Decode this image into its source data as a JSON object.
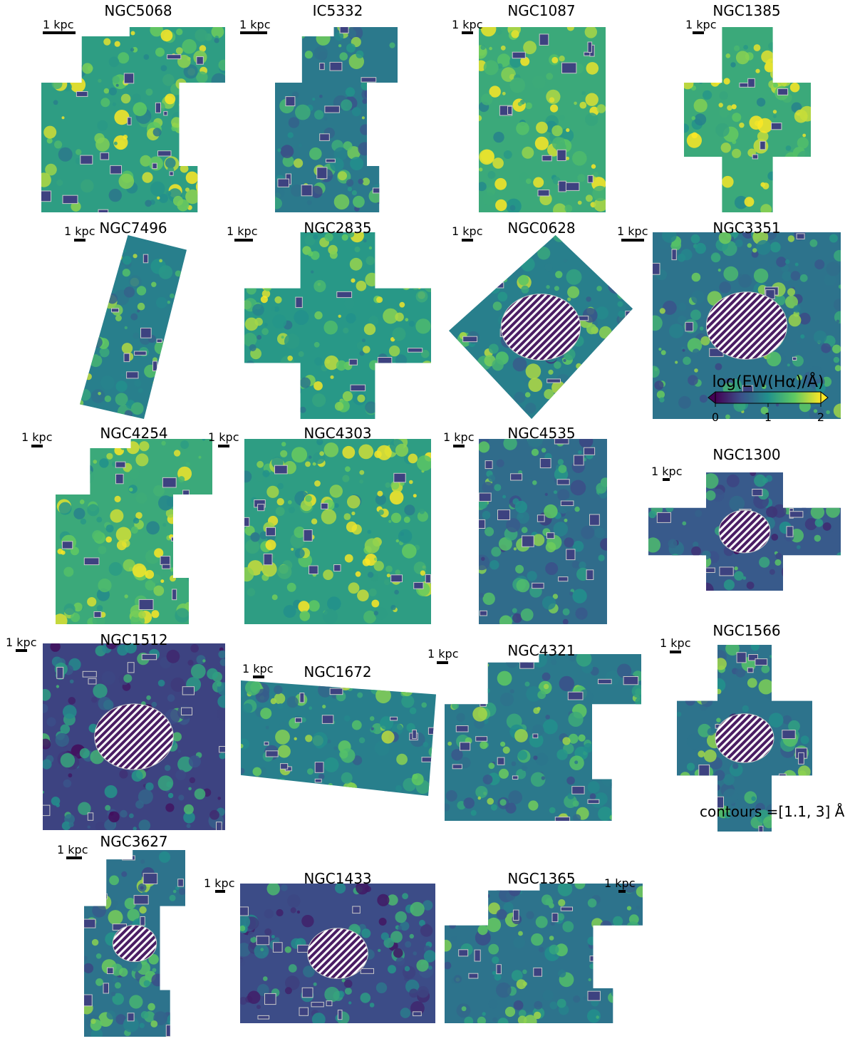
{
  "scale_bar_label": "1 kpc",
  "colormap": {
    "name": "viridis",
    "stops": [
      "#440154",
      "#3b528b",
      "#21918c",
      "#5ec962",
      "#fde725"
    ]
  },
  "contour_color": "#c8c8c8",
  "colorbar": {
    "label": "log(EW(Hα)/Å)",
    "range": [
      0,
      2
    ],
    "ticks": [
      "0",
      "1",
      "2"
    ],
    "extend": "both"
  },
  "contour_note": "contours =[1.1, 3] Å",
  "panels": [
    {
      "name": "NGC5068",
      "level": 1.35,
      "hatched": false
    },
    {
      "name": "IC5332",
      "level": 1.05,
      "hatched": false
    },
    {
      "name": "NGC1087",
      "level": 1.45,
      "hatched": false
    },
    {
      "name": "NGC1385",
      "level": 1.45,
      "hatched": false
    },
    {
      "name": "NGC7496",
      "level": 1.1,
      "hatched": false
    },
    {
      "name": "NGC2835",
      "level": 1.3,
      "hatched": false
    },
    {
      "name": "NGC0628",
      "level": 1.1,
      "hatched": true
    },
    {
      "name": "NGC3351",
      "level": 1.0,
      "hatched": true
    },
    {
      "name": "NGC4254",
      "level": 1.45,
      "hatched": false
    },
    {
      "name": "NGC4303",
      "level": 1.35,
      "hatched": false
    },
    {
      "name": "NGC4535",
      "level": 0.95,
      "hatched": false
    },
    {
      "name": "NGC1300",
      "level": 0.8,
      "hatched": true
    },
    {
      "name": "NGC1512",
      "level": 0.65,
      "hatched": true
    },
    {
      "name": "NGC1672",
      "level": 1.1,
      "hatched": false
    },
    {
      "name": "NGC4321",
      "level": 1.05,
      "hatched": false
    },
    {
      "name": "NGC1566",
      "level": 1.0,
      "hatched": true
    },
    {
      "name": "NGC3627",
      "level": 1.0,
      "hatched": true
    },
    {
      "name": "NGC1433",
      "level": 0.7,
      "hatched": true
    },
    {
      "name": "NGC1365",
      "level": 1.0,
      "hatched": false
    }
  ]
}
